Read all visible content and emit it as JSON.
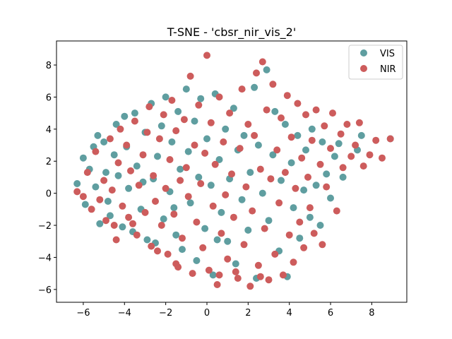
{
  "chart_data": {
    "type": "scatter",
    "title": "T-SNE - 'cbsr_nir_vis_2'",
    "xlabel": "",
    "ylabel": "",
    "xlim": [
      -7.3,
      9.7
    ],
    "ylim": [
      -6.8,
      9.5
    ],
    "xticks": [
      -6,
      -4,
      -2,
      0,
      2,
      4,
      6,
      8
    ],
    "yticks": [
      -6,
      -4,
      -2,
      0,
      2,
      4,
      6,
      8
    ],
    "grid": false,
    "legend_position": "top-right",
    "series": [
      {
        "name": "VIS",
        "color": "#5f9ea0",
        "points": [
          [
            -6.3,
            0.6
          ],
          [
            -6.0,
            2.2
          ],
          [
            -5.7,
            1.5
          ],
          [
            -5.5,
            2.9
          ],
          [
            -5.3,
            3.6
          ],
          [
            -5.2,
            -1.9
          ],
          [
            -5.0,
            3.2
          ],
          [
            -4.8,
            -0.5
          ],
          [
            -4.7,
            -1.4
          ],
          [
            -4.5,
            2.4
          ],
          [
            -4.4,
            4.3
          ],
          [
            -4.3,
            1.1
          ],
          [
            -4.1,
            -2.1
          ],
          [
            -4.0,
            4.8
          ],
          [
            -3.9,
            2.9
          ],
          [
            -3.8,
            0.3
          ],
          [
            -3.6,
            -2.4
          ],
          [
            -3.5,
            5.0
          ],
          [
            -3.4,
            1.7
          ],
          [
            -3.2,
            -1.0
          ],
          [
            -3.0,
            3.8
          ],
          [
            -2.9,
            -2.9
          ],
          [
            -2.7,
            5.6
          ],
          [
            -2.6,
            0.9
          ],
          [
            -2.5,
            -3.1
          ],
          [
            -2.4,
            2.3
          ],
          [
            -2.2,
            4.2
          ],
          [
            -2.1,
            -1.6
          ],
          [
            -2.0,
            6.0
          ],
          [
            -1.8,
            0.1
          ],
          [
            -1.7,
            3.2
          ],
          [
            -1.5,
            -2.6
          ],
          [
            -1.4,
            5.1
          ],
          [
            -1.3,
            1.5
          ],
          [
            -1.2,
            -3.5
          ],
          [
            -1.0,
            6.5
          ],
          [
            -0.9,
            2.6
          ],
          [
            -0.8,
            -0.6
          ],
          [
            -0.6,
            4.5
          ],
          [
            -0.5,
            -4.2
          ],
          [
            -0.4,
            1.0
          ],
          [
            -0.3,
            5.9
          ],
          [
            -0.1,
            -2.2
          ],
          [
            0.0,
            3.4
          ],
          [
            0.2,
            0.5
          ],
          [
            0.3,
            -5.1
          ],
          [
            0.4,
            6.2
          ],
          [
            0.6,
            2.1
          ],
          [
            0.7,
            -1.2
          ],
          [
            0.9,
            4.0
          ],
          [
            1.0,
            -3.0
          ],
          [
            1.1,
            0.9
          ],
          [
            1.3,
            5.3
          ],
          [
            1.4,
            -4.4
          ],
          [
            1.5,
            2.7
          ],
          [
            1.7,
            -0.4
          ],
          [
            1.8,
            3.6
          ],
          [
            2.0,
            -2.3
          ],
          [
            2.1,
            1.3
          ],
          [
            2.3,
            6.6
          ],
          [
            2.4,
            -5.3
          ],
          [
            2.5,
            3.0
          ],
          [
            2.7,
            0.0
          ],
          [
            2.9,
            7.7
          ],
          [
            3.0,
            -1.7
          ],
          [
            3.2,
            2.4
          ],
          [
            3.3,
            5.1
          ],
          [
            3.5,
            -3.6
          ],
          [
            3.6,
            0.8
          ],
          [
            3.8,
            4.3
          ],
          [
            3.9,
            -5.2
          ],
          [
            4.1,
            1.9
          ],
          [
            4.2,
            -0.9
          ],
          [
            4.4,
            3.6
          ],
          [
            4.5,
            -2.8
          ],
          [
            4.7,
            0.2
          ],
          [
            4.8,
            2.7
          ],
          [
            5.0,
            -1.5
          ],
          [
            5.1,
            4.0
          ],
          [
            5.3,
            0.5
          ],
          [
            5.5,
            -2.0
          ],
          [
            5.6,
            3.2
          ],
          [
            5.8,
            1.2
          ],
          [
            6.0,
            -0.3
          ],
          [
            6.2,
            2.3
          ],
          [
            6.4,
            3.1
          ],
          [
            6.6,
            1.0
          ],
          [
            7.3,
            2.7
          ],
          [
            7.5,
            3.6
          ],
          [
            8.9,
            3.4
          ],
          [
            -5.9,
            -0.7
          ],
          [
            -5.4,
            0.4
          ],
          [
            -4.9,
            1.3
          ],
          [
            -3.1,
            0.7
          ],
          [
            -1.6,
            -0.9
          ],
          [
            0.5,
            -2.9
          ]
        ]
      },
      {
        "name": "NIR",
        "color": "#cd5c5c",
        "points": [
          [
            -6.3,
            0.1
          ],
          [
            -6.0,
            -0.2
          ],
          [
            -5.8,
            1.3
          ],
          [
            -5.6,
            -1.0
          ],
          [
            -5.4,
            2.6
          ],
          [
            -5.2,
            -0.4
          ],
          [
            -5.0,
            0.8
          ],
          [
            -4.9,
            -1.7
          ],
          [
            -4.7,
            3.4
          ],
          [
            -4.6,
            0.2
          ],
          [
            -4.5,
            -2.0
          ],
          [
            -4.3,
            1.9
          ],
          [
            -4.2,
            4.0
          ],
          [
            -4.1,
            -0.8
          ],
          [
            -3.9,
            3.0
          ],
          [
            -3.8,
            -1.5
          ],
          [
            -3.7,
            1.4
          ],
          [
            -3.5,
            4.5
          ],
          [
            -3.4,
            -2.6
          ],
          [
            -3.3,
            0.5
          ],
          [
            -3.1,
            2.4
          ],
          [
            -3.0,
            -1.2
          ],
          [
            -2.9,
            3.8
          ],
          [
            -2.8,
            5.4
          ],
          [
            -2.7,
            -3.3
          ],
          [
            -2.6,
            1.1
          ],
          [
            -2.5,
            -0.5
          ],
          [
            -2.3,
            3.4
          ],
          [
            -2.2,
            -2.0
          ],
          [
            -2.1,
            4.9
          ],
          [
            -2.0,
            0.3
          ],
          [
            -1.9,
            -3.8
          ],
          [
            -1.8,
            2.1
          ],
          [
            -1.7,
            5.8
          ],
          [
            -1.6,
            -1.3
          ],
          [
            -1.5,
            3.9
          ],
          [
            -1.4,
            -4.6
          ],
          [
            -1.3,
            0.8
          ],
          [
            -1.2,
            -2.8
          ],
          [
            -1.1,
            4.6
          ],
          [
            -1.0,
            1.6
          ],
          [
            -0.9,
            -0.2
          ],
          [
            -0.8,
            7.3
          ],
          [
            -0.7,
            -5.0
          ],
          [
            -0.6,
            3.0
          ],
          [
            -0.5,
            -1.8
          ],
          [
            -0.4,
            5.5
          ],
          [
            -0.3,
            0.6
          ],
          [
            -0.2,
            -3.4
          ],
          [
            -0.1,
            2.5
          ],
          [
            0.0,
            8.6
          ],
          [
            0.1,
            -4.8
          ],
          [
            0.2,
            4.4
          ],
          [
            0.3,
            -0.8
          ],
          [
            0.4,
            1.8
          ],
          [
            0.5,
            -5.7
          ],
          [
            0.6,
            6.0
          ],
          [
            0.7,
            -2.5
          ],
          [
            0.8,
            3.2
          ],
          [
            0.9,
            -0.1
          ],
          [
            1.0,
            -4.1
          ],
          [
            1.1,
            5.0
          ],
          [
            1.2,
            1.2
          ],
          [
            1.3,
            -1.5
          ],
          [
            1.5,
            -5.3
          ],
          [
            1.6,
            2.8
          ],
          [
            1.7,
            6.5
          ],
          [
            1.8,
            -3.2
          ],
          [
            1.9,
            0.4
          ],
          [
            2.0,
            4.3
          ],
          [
            2.1,
            -5.8
          ],
          [
            2.2,
            -1.1
          ],
          [
            2.3,
            3.6
          ],
          [
            2.4,
            7.5
          ],
          [
            2.5,
            -4.5
          ],
          [
            2.6,
            1.5
          ],
          [
            2.7,
            8.2
          ],
          [
            2.8,
            -2.2
          ],
          [
            2.9,
            5.2
          ],
          [
            3.0,
            -5.4
          ],
          [
            3.1,
            0.9
          ],
          [
            3.2,
            6.8
          ],
          [
            3.3,
            -3.8
          ],
          [
            3.4,
            2.7
          ],
          [
            3.5,
            -0.6
          ],
          [
            3.6,
            4.7
          ],
          [
            3.7,
            -5.1
          ],
          [
            3.8,
            1.3
          ],
          [
            3.9,
            6.1
          ],
          [
            4.0,
            -2.6
          ],
          [
            4.1,
            3.5
          ],
          [
            4.2,
            -4.3
          ],
          [
            4.3,
            0.3
          ],
          [
            4.4,
            5.6
          ],
          [
            4.5,
            -1.8
          ],
          [
            4.6,
            2.2
          ],
          [
            4.7,
            -3.4
          ],
          [
            4.8,
            4.9
          ],
          [
            4.9,
            1.0
          ],
          [
            5.0,
            -0.9
          ],
          [
            5.1,
            3.3
          ],
          [
            5.2,
            -2.5
          ],
          [
            5.3,
            5.2
          ],
          [
            5.5,
            1.8
          ],
          [
            5.6,
            -3.2
          ],
          [
            5.7,
            4.2
          ],
          [
            5.8,
            0.4
          ],
          [
            6.0,
            2.8
          ],
          [
            6.1,
            5.0
          ],
          [
            6.3,
            -1.1
          ],
          [
            6.5,
            3.7
          ],
          [
            6.6,
            1.6
          ],
          [
            6.8,
            4.3
          ],
          [
            7.0,
            2.3
          ],
          [
            7.2,
            3.0
          ],
          [
            7.4,
            4.4
          ],
          [
            7.6,
            1.7
          ],
          [
            7.9,
            2.4
          ],
          [
            8.2,
            3.3
          ],
          [
            8.5,
            2.2
          ],
          [
            8.9,
            3.4
          ],
          [
            -4.4,
            -2.9
          ],
          [
            -3.6,
            -1.9
          ],
          [
            -2.4,
            -3.6
          ],
          [
            -1.5,
            -4.4
          ],
          [
            0.6,
            -5.1
          ],
          [
            1.4,
            -4.9
          ],
          [
            2.6,
            -5.2
          ]
        ]
      }
    ]
  }
}
